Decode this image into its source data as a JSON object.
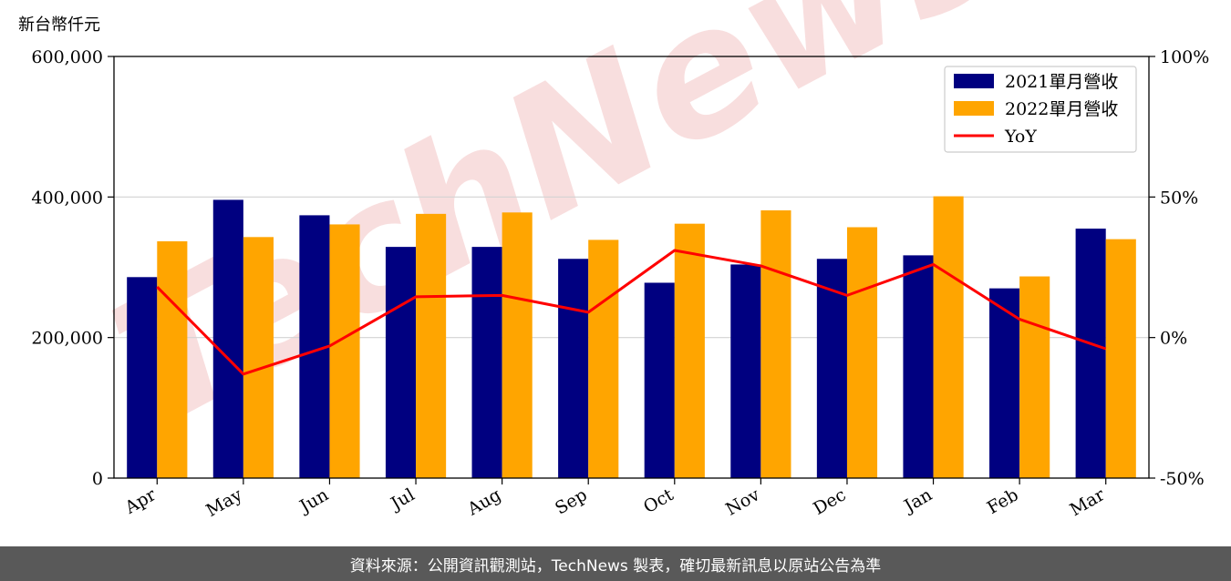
{
  "unit_label": "新台幣仟元",
  "footer": "資料來源：公開資訊觀測站，TechNews 製表，確切最新訊息以原站公告為準",
  "watermark": "TechNews",
  "colors": {
    "series_2021": "#000080",
    "series_2022": "#FFA500",
    "yoy": "#FF0000",
    "grid": "#d3d3d3",
    "watermark": "#f0b8b8"
  },
  "chart_data": {
    "type": "bar",
    "title": "",
    "xlabel": "",
    "ylabel": "新台幣仟元",
    "categories": [
      "Apr",
      "May",
      "Jun",
      "Jul",
      "Aug",
      "Sep",
      "Oct",
      "Nov",
      "Dec",
      "Jan",
      "Feb",
      "Mar"
    ],
    "series": [
      {
        "name": "2021單月營收",
        "type": "bar",
        "axis": "left",
        "values": [
          286000,
          396000,
          374000,
          329000,
          329000,
          312000,
          278000,
          304000,
          312000,
          317000,
          270000,
          355000
        ]
      },
      {
        "name": "2022單月營收",
        "type": "bar",
        "axis": "left",
        "values": [
          337000,
          343000,
          361000,
          376000,
          378000,
          339000,
          362000,
          381000,
          357000,
          401000,
          287000,
          340000
        ]
      },
      {
        "name": "YoY",
        "type": "line",
        "axis": "right",
        "unit": "%",
        "values": [
          18,
          -13,
          -3,
          14.5,
          15,
          9,
          31,
          25.5,
          15,
          26,
          6.5,
          -4
        ]
      }
    ],
    "ylim": [
      0,
      600000
    ],
    "yticks": [
      "0",
      "200,000",
      "400,000",
      "600,000"
    ],
    "y2lim": [
      -50,
      100
    ],
    "y2ticks": [
      "-50%",
      "0%",
      "50%",
      "100%"
    ],
    "legend_position": "top-right",
    "grid": "horizontal"
  }
}
